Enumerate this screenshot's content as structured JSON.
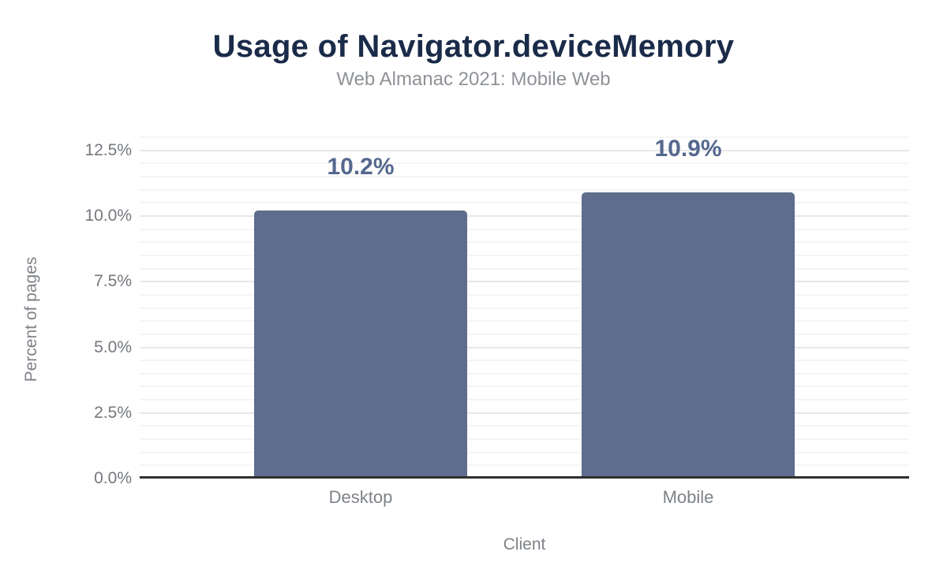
{
  "chart_data": {
    "type": "bar",
    "title": "Usage of Navigator.deviceMemory",
    "subtitle": "Web Almanac 2021: Mobile Web",
    "xlabel": "Client",
    "ylabel": "Percent of pages",
    "categories": [
      "Desktop",
      "Mobile"
    ],
    "values": [
      10.2,
      10.9
    ],
    "value_labels": [
      "10.2%",
      "10.9%"
    ],
    "ytick_values": [
      0,
      2.5,
      5,
      7.5,
      10,
      12.5
    ],
    "ytick_labels": [
      "0.0%",
      "2.5%",
      "5.0%",
      "7.5%",
      "10.0%",
      "12.5%"
    ],
    "ylim": [
      0,
      13
    ],
    "minor_grid_step": 0.5,
    "major_grid_step": 2.5,
    "grid": true,
    "legend": false,
    "colors": {
      "bar": "#5e6d8d",
      "title": "#1a2b49",
      "subtitle": "#8e9297",
      "axis_text": "#74787d",
      "category_text": "#7e8287",
      "data_label": "#55688e",
      "axis_line": "#2f2f2f",
      "major_grid": "#e7e7e7",
      "minor_grid": "#f5f5f5",
      "background": "#ffffff"
    }
  }
}
